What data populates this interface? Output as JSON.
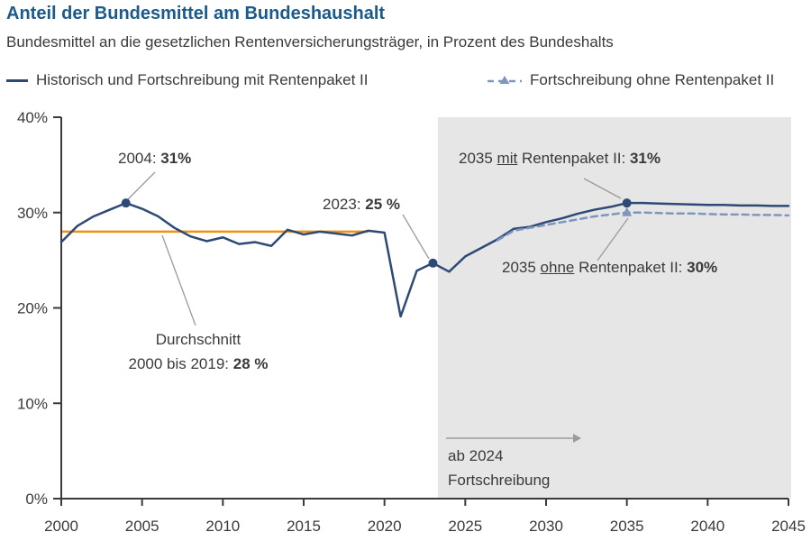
{
  "colors": {
    "title": "#1b5a8a",
    "line_solid": "#2d4a76",
    "line_dashed": "#7e97ba",
    "average": "#ee9215",
    "forecast_bg": "#e6e6e6",
    "axis": "#3a3a3a",
    "annotation_line": "#9b9b9b"
  },
  "chart_data": {
    "type": "line",
    "title": "Anteil der Bundesmittel am Bundeshaushalt",
    "subtitle": "Bundesmittel an die gesetzlichen Rentenversicherungsträger, in Prozent des Bundeshalts",
    "ylabel": "",
    "xlabel": "",
    "ylim": [
      0,
      40
    ],
    "xlim": [
      2000,
      2045
    ],
    "grid": false,
    "legend_position": "top",
    "y_ticks": [
      {
        "value": 0,
        "label": "0%"
      },
      {
        "value": 10,
        "label": "10%"
      },
      {
        "value": 20,
        "label": "20%"
      },
      {
        "value": 30,
        "label": "30%"
      },
      {
        "value": 40,
        "label": "40%"
      }
    ],
    "x_ticks": [
      {
        "value": 2000,
        "label": "2000"
      },
      {
        "value": 2005,
        "label": "2005"
      },
      {
        "value": 2010,
        "label": "2010"
      },
      {
        "value": 2015,
        "label": "2015"
      },
      {
        "value": 2020,
        "label": "2020"
      },
      {
        "value": 2025,
        "label": "2025"
      },
      {
        "value": 2030,
        "label": "2030"
      },
      {
        "value": 2035,
        "label": "2035"
      },
      {
        "value": 2040,
        "label": "2040"
      },
      {
        "value": 2045,
        "label": "2045"
      }
    ],
    "series": [
      {
        "name": "Historisch und Fortschreibung mit Rentenpaket II",
        "style": "solid",
        "color": "#2d4a76",
        "years": [
          2000,
          2001,
          2002,
          2003,
          2004,
          2005,
          2006,
          2007,
          2008,
          2009,
          2010,
          2011,
          2012,
          2013,
          2014,
          2015,
          2016,
          2017,
          2018,
          2019,
          2020,
          2021,
          2022,
          2023,
          2024,
          2025,
          2026,
          2027,
          2028,
          2029,
          2030,
          2031,
          2032,
          2033,
          2034,
          2035,
          2036,
          2037,
          2038,
          2039,
          2040,
          2041,
          2042,
          2043,
          2044,
          2045
        ],
        "values": [
          26.9,
          28.6,
          29.6,
          30.3,
          31.0,
          30.4,
          29.6,
          28.4,
          27.5,
          27.0,
          27.4,
          26.7,
          26.9,
          26.5,
          28.2,
          27.7,
          28.0,
          27.8,
          27.6,
          28.1,
          27.9,
          19.1,
          23.9,
          24.7,
          23.8,
          25.4,
          26.3,
          27.2,
          28.3,
          28.5,
          29.0,
          29.4,
          29.9,
          30.3,
          30.6,
          31.0,
          31.0,
          30.95,
          30.9,
          30.85,
          30.8,
          30.8,
          30.75,
          30.75,
          30.7,
          30.7
        ]
      },
      {
        "name": "Fortschreibung ohne Rentenpaket II",
        "style": "dashed",
        "color": "#7e97ba",
        "years": [
          2027,
          2028,
          2029,
          2030,
          2031,
          2032,
          2033,
          2034,
          2035,
          2036,
          2037,
          2038,
          2039,
          2040,
          2041,
          2042,
          2043,
          2044,
          2045
        ],
        "values": [
          27.1,
          28.1,
          28.4,
          28.7,
          29.0,
          29.3,
          29.6,
          29.8,
          30.0,
          30.0,
          29.95,
          29.9,
          29.9,
          29.85,
          29.8,
          29.8,
          29.75,
          29.75,
          29.7
        ]
      }
    ],
    "average_line": {
      "value": 28,
      "from": 2000,
      "to": 2019,
      "color": "#ee9215"
    },
    "forecast_region": {
      "from": 2023.3,
      "to": 2045
    },
    "markers": [
      {
        "year": 2004,
        "value": 31.0,
        "shape": "dot"
      },
      {
        "year": 2023,
        "value": 24.7,
        "shape": "dot"
      },
      {
        "year": 2035,
        "value": 31.0,
        "shape": "dot"
      },
      {
        "year": 2035,
        "value": 30.0,
        "shape": "triangle"
      }
    ]
  },
  "annotations": {
    "a2004": {
      "prefix": "2004: ",
      "value": "31%"
    },
    "avg": {
      "line1": "Durchschnitt",
      "line2_prefix": "2000 bis 2019: ",
      "line2_value": "28 %"
    },
    "a2023": {
      "prefix": "2023: ",
      "value": "25 %"
    },
    "mit": {
      "p1": "2035 ",
      "u": "mit",
      "p2": " Rentenpaket II: ",
      "value": "31%"
    },
    "ohne": {
      "p1": "2035 ",
      "u": "ohne",
      "p2": " Rentenpaket II: ",
      "value": "30%"
    },
    "forecast": {
      "line1": "ab 2024",
      "line2": "Fortschreibung"
    }
  }
}
